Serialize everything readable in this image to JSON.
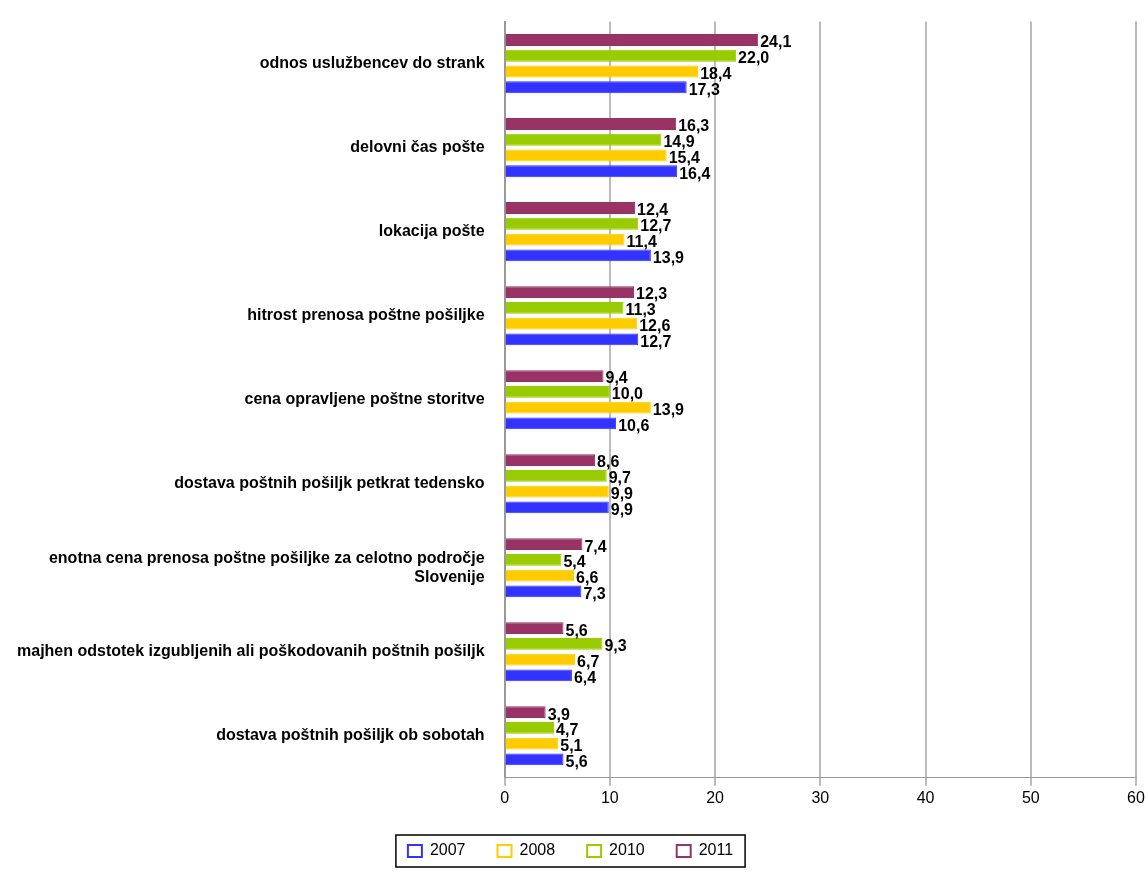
{
  "chart_data": {
    "type": "bar",
    "orientation": "horizontal",
    "categories": [
      "odnos uslužbencev do strank",
      "delovni čas pošte",
      "lokacija pošte",
      "hitrost prenosa poštne pošiljke",
      "cena opravljene poštne storitve",
      "dostava poštnih pošiljk petkrat tedensko",
      "enotna cena prenosa poštne pošiljke za celotno področje Slovenije",
      "majhen odstotek izgubljenih ali poškodovanih poštnih pošiljk",
      "dostava poštnih pošiljk ob sobotah"
    ],
    "series": [
      {
        "name": "2007",
        "color": "#3333ff",
        "values": [
          17.3,
          16.4,
          13.9,
          12.7,
          10.6,
          9.9,
          7.3,
          6.4,
          5.6
        ],
        "value_labels": [
          "17,3",
          "16,4",
          "13,9",
          "12,7",
          "10,6",
          "9,9",
          "7,3",
          "6,4",
          "5,6"
        ]
      },
      {
        "name": "2008",
        "color": "#ffcc00",
        "values": [
          18.4,
          15.4,
          11.4,
          12.6,
          13.9,
          9.9,
          6.6,
          6.7,
          5.1
        ],
        "value_labels": [
          "18,4",
          "15,4",
          "11,4",
          "12,6",
          "13,9",
          "9,9",
          "6,6",
          "6,7",
          "5,1"
        ]
      },
      {
        "name": "2010",
        "color": "#99cc00",
        "values": [
          22.0,
          14.9,
          12.7,
          11.3,
          10.0,
          9.7,
          5.4,
          9.3,
          4.7
        ],
        "value_labels": [
          "22,0",
          "14,9",
          "12,7",
          "11,3",
          "10,0",
          "9,7",
          "5,4",
          "9,3",
          "4,7"
        ]
      },
      {
        "name": "2011",
        "color": "#993366",
        "values": [
          24.1,
          16.3,
          12.4,
          12.3,
          9.4,
          8.6,
          7.4,
          5.6,
          3.9
        ],
        "value_labels": [
          "24,1",
          "16,3",
          "12,4",
          "12,3",
          "9,4",
          "8,6",
          "7,4",
          "5,6",
          "3,9"
        ]
      }
    ],
    "xlim": [
      0,
      60
    ],
    "xticks": [
      0,
      10,
      20,
      30,
      40,
      50,
      60
    ],
    "grid": "x",
    "legend": "bottom"
  }
}
